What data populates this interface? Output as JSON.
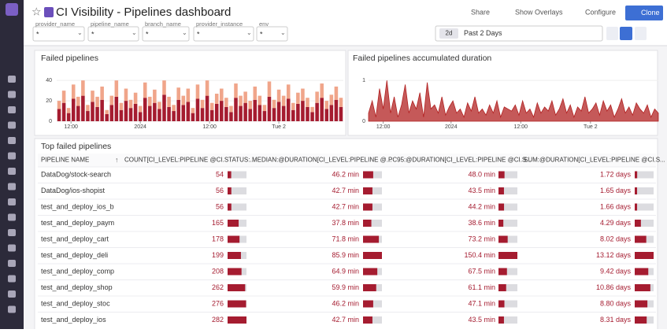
{
  "header": {
    "title": "CI Visibility - Pipelines dashboard",
    "buttons": [
      "Share",
      "Show Overlays",
      "Configure",
      "Clone"
    ]
  },
  "filters": [
    {
      "label": "provider_name",
      "value": "*"
    },
    {
      "label": "pipeline_name",
      "value": "*"
    },
    {
      "label": "branch_name",
      "value": "*"
    },
    {
      "label": "provider_instance",
      "value": "*"
    },
    {
      "label": "env",
      "value": "*"
    }
  ],
  "time": {
    "badge": "2d",
    "label": "Past 2 Days"
  },
  "chart_data": [
    {
      "type": "bar",
      "title": "Failed pipelines",
      "stacked": true,
      "ylim": [
        0,
        44
      ],
      "yticks": [
        0,
        20,
        40
      ],
      "xlim": [
        0,
        60
      ],
      "xticks": [
        {
          "value": 3,
          "label": "12:00"
        },
        {
          "value": 17.5,
          "label": "2024"
        },
        {
          "value": 32,
          "label": "12:00"
        },
        {
          "value": 46.5,
          "label": "Tue 2"
        }
      ],
      "series": [
        {
          "color": "#a51c30",
          "values": [
            12,
            18,
            8,
            22,
            15,
            25,
            10,
            19,
            14,
            21,
            7,
            16,
            24,
            11,
            20,
            13,
            17,
            9,
            23,
            15,
            18,
            12,
            26,
            14,
            10,
            21,
            16,
            19,
            8,
            22,
            13,
            25,
            11,
            17,
            20,
            14,
            9,
            23,
            15,
            18,
            12,
            21,
            16,
            10,
            24,
            13,
            19,
            15,
            22,
            11,
            17,
            20,
            14,
            9,
            18,
            23,
            12,
            16,
            21,
            14
          ]
        },
        {
          "color": "#f0a58a",
          "values": [
            8,
            12,
            5,
            14,
            9,
            15,
            6,
            11,
            10,
            13,
            4,
            9,
            16,
            7,
            12,
            8,
            11,
            6,
            15,
            9,
            13,
            7,
            14,
            10,
            6,
            12,
            9,
            13,
            5,
            14,
            8,
            15,
            7,
            10,
            12,
            9,
            6,
            14,
            10,
            11,
            8,
            13,
            9,
            6,
            15,
            8,
            12,
            10,
            14,
            7,
            11,
            12,
            9,
            5,
            11,
            14,
            8,
            10,
            13,
            9
          ]
        }
      ]
    },
    {
      "type": "area",
      "title": "Failed pipelines accumulated duration",
      "ylim": [
        0,
        1.1
      ],
      "yticks": [
        0,
        1
      ],
      "xlim": [
        0,
        79
      ],
      "xticks": [
        {
          "value": 4,
          "label": "12:00"
        },
        {
          "value": 22.5,
          "label": "2024"
        },
        {
          "value": 41.5,
          "label": "12:00"
        },
        {
          "value": 60.5,
          "label": "Tue 2"
        }
      ],
      "series": [
        {
          "color": "#b22222",
          "values": [
            0.2,
            0.5,
            0.1,
            0.8,
            0.3,
            1.0,
            0.2,
            0.6,
            0.1,
            0.4,
            0.9,
            0.2,
            0.5,
            0.3,
            0.7,
            0.1,
            0.95,
            0.3,
            0.4,
            0.2,
            0.6,
            0.15,
            0.35,
            0.5,
            0.2,
            0.3,
            0.1,
            0.45,
            0.25,
            0.6,
            0.2,
            0.3,
            0.15,
            0.4,
            0.2,
            0.5,
            0.1,
            0.35,
            0.3,
            0.25,
            0.4,
            0.15,
            0.5,
            0.2,
            0.3,
            0.1,
            0.45,
            0.2,
            0.35,
            0.25,
            0.5,
            0.15,
            0.3,
            0.55,
            0.2,
            0.4,
            0.1,
            0.35,
            0.25,
            0.6,
            0.2,
            0.3,
            0.45,
            0.15,
            0.5,
            0.25,
            0.4,
            0.1,
            0.3,
            0.55,
            0.2,
            0.35,
            0.15,
            0.45,
            0.3,
            0.2,
            0.4,
            0.1,
            0.3,
            0.2
          ]
        }
      ]
    }
  ],
  "table": {
    "title": "Top failed pipelines",
    "bar_color": "#a51c30",
    "columns": [
      "PIPELINE NAME",
      "COUNT[CI_LEVEL:PIPELINE @CI.STATUS:...",
      "MEDIAN:@DURATION[CI_LEVEL:PIPELINE @...",
      "PC95:@DURATION[CI_LEVEL:PIPELINE @CI.S...",
      "SUM:@DURATION[CI_LEVEL:PIPELINE @CI.S..."
    ],
    "rows": [
      {
        "name": "DataDog/stock-search",
        "cells": [
          54,
          {
            "value": 46.2,
            "label": "46.2 min"
          },
          {
            "value": 48.0,
            "label": "48.0 min"
          },
          {
            "value": 1.72,
            "label": "1.72 days"
          }
        ]
      },
      {
        "name": "DataDog/ios-shopist",
        "cells": [
          56,
          {
            "value": 42.7,
            "label": "42.7 min"
          },
          {
            "value": 43.5,
            "label": "43.5 min"
          },
          {
            "value": 1.65,
            "label": "1.65 days"
          }
        ]
      },
      {
        "name": "test_and_deploy_ios_b",
        "cells": [
          56,
          {
            "value": 42.7,
            "label": "42.7 min"
          },
          {
            "value": 44.2,
            "label": "44.2 min"
          },
          {
            "value": 1.66,
            "label": "1.66 days"
          }
        ]
      },
      {
        "name": "test_and_deploy_paym",
        "cells": [
          165,
          {
            "value": 37.8,
            "label": "37.8 min"
          },
          {
            "value": 38.6,
            "label": "38.6 min"
          },
          {
            "value": 4.29,
            "label": "4.29 days"
          }
        ]
      },
      {
        "name": "test_and_deploy_cart",
        "cells": [
          178,
          {
            "value": 71.8,
            "label": "71.8 min"
          },
          {
            "value": 73.2,
            "label": "73.2 min"
          },
          {
            "value": 8.02,
            "label": "8.02 days"
          }
        ]
      },
      {
        "name": "test_and_deploy_deli",
        "cells": [
          199,
          {
            "value": 85.9,
            "label": "85.9 min"
          },
          {
            "value": 150.4,
            "label": "150.4 min"
          },
          {
            "value": 13.12,
            "label": "13.12 days"
          }
        ]
      },
      {
        "name": "test_and_deploy_comp",
        "cells": [
          208,
          {
            "value": 64.9,
            "label": "64.9 min"
          },
          {
            "value": 67.5,
            "label": "67.5 min"
          },
          {
            "value": 9.42,
            "label": "9.42 days"
          }
        ]
      },
      {
        "name": "test_and_deploy_shop",
        "cells": [
          262,
          {
            "value": 59.9,
            "label": "59.9 min"
          },
          {
            "value": 61.1,
            "label": "61.1 min"
          },
          {
            "value": 10.86,
            "label": "10.86 days"
          }
        ]
      },
      {
        "name": "test_and_deploy_stoc",
        "cells": [
          276,
          {
            "value": 46.2,
            "label": "46.2 min"
          },
          {
            "value": 47.1,
            "label": "47.1 min"
          },
          {
            "value": 8.8,
            "label": "8.80 days"
          }
        ]
      },
      {
        "name": "test_and_deploy_ios",
        "cells": [
          282,
          {
            "value": 42.7,
            "label": "42.7 min"
          },
          {
            "value": 43.5,
            "label": "43.5 min"
          },
          {
            "value": 8.31,
            "label": "8.31 days"
          }
        ]
      }
    ]
  }
}
